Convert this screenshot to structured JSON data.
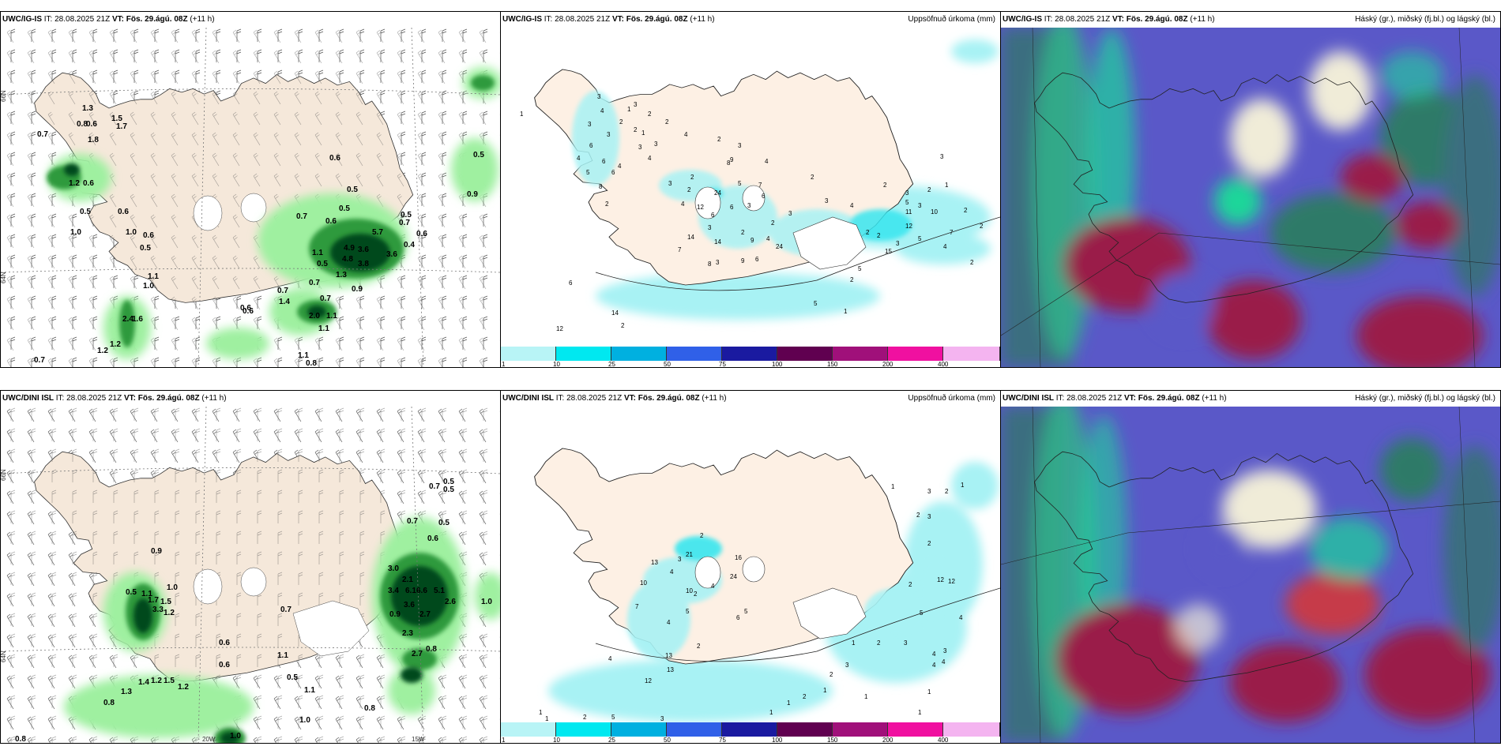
{
  "panels": {
    "ig_wind": {
      "model": "UWC/IG-IS",
      "it": "IT: 28.08.2025 21Z",
      "vt_label": "VT:",
      "vt": "Fös. 29.ágú. 08Z",
      "lead": "(+11 h)",
      "subtitle": ""
    },
    "ig_precip": {
      "model": "UWC/IG-IS",
      "it": "IT: 28.08.2025 21Z",
      "vt_label": "VT:",
      "vt": "Fös. 29.ágú. 08Z",
      "lead": "(+11 h)",
      "subtitle": "Uppsöfnuð úrkoma (mm)"
    },
    "ig_cloud": {
      "model": "UWC/IG-IS",
      "it": "IT: 28.08.2025 21Z",
      "vt_label": "VT:",
      "vt": "Fös. 29.ágú. 08Z",
      "lead": "(+11 h)",
      "subtitle": "Háský (gr.), miðský (fj.bl.) og lágský (bl.)"
    },
    "dini_wind": {
      "model": "UWC/DINI ISL",
      "it": "IT: 28.08.2025 21Z",
      "vt_label": "VT:",
      "vt": "Fös. 29.ágú. 08Z",
      "lead": "(+11 h)",
      "subtitle": ""
    },
    "dini_precip": {
      "model": "UWC/DINI ISL",
      "it": "IT: 28.08.2025 21Z",
      "vt_label": "VT:",
      "vt": "Fös. 29.ágú. 08Z",
      "lead": "(+11 h)",
      "subtitle": "Uppsöfnuð úrkoma (mm)"
    },
    "dini_cloud": {
      "model": "UWC/DINI ISL",
      "it": "IT: 28.08.2025 21Z",
      "vt_label": "VT:",
      "vt": "Fös. 29.ágú. 08Z",
      "lead": "(+11 h)",
      "subtitle": "Háský (gr.), miðský (fj.bl.) og lágský (bl.)"
    }
  },
  "axis_labels": {
    "lat66": "66N",
    "lat64": "64N",
    "lat65": "65N",
    "lon20": "20W",
    "lon15": "15W"
  },
  "precip_legend": {
    "ticks": [
      "1",
      "10",
      "25",
      "50",
      "75",
      "100",
      "150",
      "200",
      "400"
    ],
    "colors": [
      "#b8f4f6",
      "#00e8f0",
      "#00b0e0",
      "#3060e8",
      "#1a1aa0",
      "#600050",
      "#a0107a",
      "#f010a0",
      "#f4b4f0"
    ]
  },
  "colors": {
    "land": "#f5e8da",
    "land_precip": "#fdf0e4",
    "rain_light": "#9ff0a0",
    "rain_mid": "#2e9a3e",
    "rain_dark": "#06481a",
    "precip_light": "#a8f2f4",
    "precip_mid": "#38e6ef"
  },
  "ig_wind_values": [
    "0.7",
    "0.8",
    "0.6",
    "1.3",
    "1.5",
    "1.7",
    "1.8",
    "1.2",
    "0.6",
    "0.5",
    "1.0",
    "1.0",
    "0.6",
    "0.5",
    "1.1",
    "1.0",
    "0.6",
    "0.5",
    "0.5",
    "0.7",
    "0.6",
    "0.5",
    "0.5",
    "0.6",
    "0.7",
    "0.4",
    "5.7",
    "4.9",
    "3.6",
    "4.8",
    "3.8",
    "1.3",
    "3.6",
    "0.7",
    "0.6",
    "0.5",
    "0.7",
    "1.1",
    "0.9",
    "0.7",
    "1.4",
    "1.1",
    "2.0",
    "1.1",
    "0.6",
    "2.4",
    "1.6",
    "1.2",
    "1.2",
    "0.7",
    "1.1",
    "0.8",
    "0.9",
    "0.6"
  ],
  "ig_precip_values": [
    "1",
    "3",
    "4",
    "6",
    "1",
    "2",
    "3",
    "3",
    "4",
    "6",
    "5",
    "8",
    "6",
    "2",
    "2",
    "3",
    "2",
    "3",
    "4",
    "4",
    "1",
    "3",
    "9",
    "4",
    "3",
    "6",
    "2",
    "4",
    "2",
    "3",
    "24",
    "3",
    "6",
    "2",
    "7",
    "5",
    "3",
    "2",
    "9",
    "4",
    "6",
    "14",
    "9",
    "8",
    "3",
    "24",
    "6",
    "7",
    "14",
    "2",
    "3",
    "2",
    "4",
    "12",
    "8",
    "2",
    "3",
    "4",
    "2",
    "3",
    "2",
    "3",
    "5",
    "3",
    "11",
    "10",
    "12",
    "7",
    "2",
    "3",
    "5",
    "2",
    "15",
    "1",
    "2",
    "5",
    "2",
    "4",
    "2",
    "2",
    "5",
    "6",
    "12",
    "14",
    "2",
    "1"
  ],
  "dini_wind_values": [
    "0.7",
    "0.5",
    "0.5",
    "0.9",
    "1.0",
    "0.5",
    "1.1",
    "1.7",
    "1.5",
    "3.3",
    "1.2",
    "0.6",
    "1.1",
    "1.1",
    "0.8",
    "1.3",
    "1.4",
    "1.2",
    "1.5",
    "1.2",
    "1.0",
    "0.8",
    "0.8",
    "0.5",
    "1.0",
    "0.7",
    "0.6",
    "0.7",
    "0.5",
    "1.0",
    "0.6",
    "3.0",
    "2.1",
    "3.4",
    "6.1",
    "6.6",
    "5.1",
    "2.6",
    "3.6",
    "2.7",
    "2.3",
    "2.7",
    "0.8",
    "0.9"
  ],
  "dini_precip_values": [
    "1",
    "1",
    "2",
    "5",
    "3",
    "12",
    "13",
    "4",
    "10",
    "13",
    "2",
    "7",
    "16",
    "21",
    "24",
    "4",
    "10",
    "4",
    "5",
    "6",
    "5",
    "13",
    "4",
    "3",
    "2",
    "1",
    "1",
    "2",
    "1",
    "2",
    "3",
    "1",
    "2",
    "3",
    "4",
    "4",
    "3",
    "4",
    "5",
    "4",
    "12",
    "12",
    "2",
    "2",
    "2",
    "3",
    "1",
    "2",
    "1",
    "3",
    "1",
    "1",
    "1",
    "2"
  ]
}
